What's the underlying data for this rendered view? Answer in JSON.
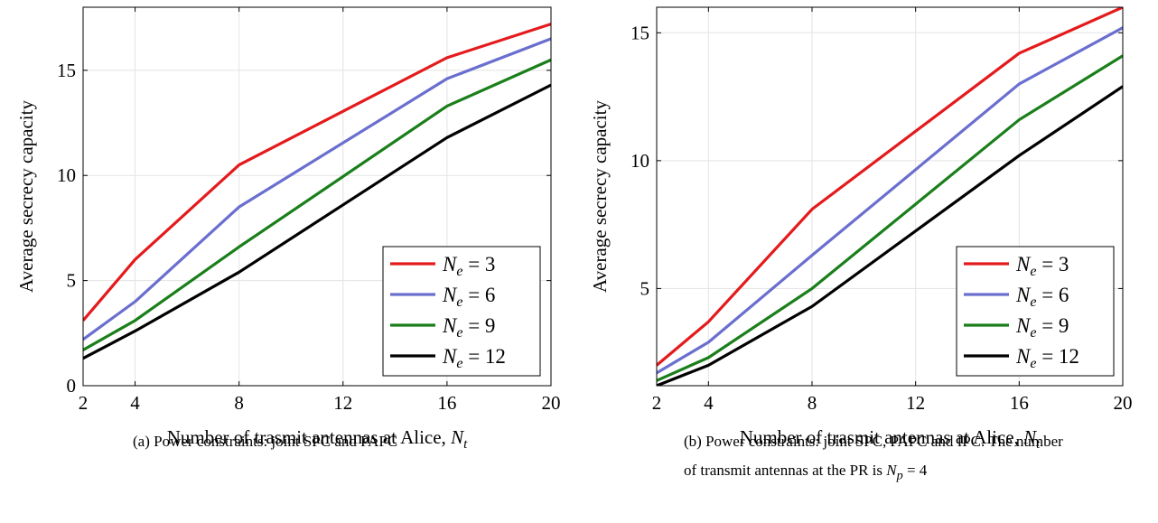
{
  "chart_data": [
    {
      "type": "line",
      "panel_id": "a",
      "xlabel": "Number of trasmit antennas at Alice, N_t",
      "xlabel_text": "Number of trasmit antennas at Alice, ",
      "xlabel_math": "N",
      "xlabel_sub": "t",
      "ylabel": "Average secrecy capacity",
      "xlim": [
        2,
        20
      ],
      "ylim": [
        0,
        18
      ],
      "xticks": [
        2,
        4,
        8,
        12,
        16,
        20
      ],
      "yticks": [
        0,
        5,
        10,
        15
      ],
      "grid": true,
      "legend_position": "bottom-right",
      "x": [
        2,
        4,
        8,
        16,
        20
      ],
      "series": [
        {
          "name": "N_e = 3",
          "label_value": "3",
          "color": "#e41a1c",
          "values": [
            3.1,
            6.0,
            10.5,
            15.6,
            17.2
          ]
        },
        {
          "name": "N_e = 6",
          "label_value": "6",
          "color": "#6a6fcf",
          "values": [
            2.2,
            4.0,
            8.5,
            14.6,
            16.5
          ]
        },
        {
          "name": "N_e = 9",
          "label_value": "9",
          "color": "#1a7f1a",
          "values": [
            1.7,
            3.1,
            6.6,
            13.3,
            15.5
          ]
        },
        {
          "name": "N_e = 12",
          "label_value": "12",
          "color": "#000000",
          "values": [
            1.3,
            2.6,
            5.4,
            11.8,
            14.3
          ]
        }
      ]
    },
    {
      "type": "line",
      "panel_id": "b",
      "xlabel": "Number of trasmit antennas at Alice, N_t",
      "xlabel_text": "Number of trasmit antennas at Alice, ",
      "xlabel_math": "N",
      "xlabel_sub": "t",
      "ylabel": "Average secrecy capacity",
      "xlim": [
        2,
        20
      ],
      "ylim": [
        1.2,
        16
      ],
      "xticks": [
        2,
        4,
        8,
        12,
        16,
        20
      ],
      "yticks": [
        5,
        10,
        15
      ],
      "grid": true,
      "legend_position": "bottom-right",
      "x": [
        2,
        4,
        8,
        16,
        20
      ],
      "series": [
        {
          "name": "N_e = 3",
          "label_value": "3",
          "color": "#e41a1c",
          "values": [
            2.0,
            3.7,
            8.1,
            14.2,
            16.0
          ]
        },
        {
          "name": "N_e = 6",
          "label_value": "6",
          "color": "#6a6fcf",
          "values": [
            1.7,
            2.9,
            6.3,
            13.0,
            15.2
          ]
        },
        {
          "name": "N_e = 9",
          "label_value": "9",
          "color": "#1a7f1a",
          "values": [
            1.4,
            2.3,
            5.0,
            11.6,
            14.1
          ]
        },
        {
          "name": "N_e = 12",
          "label_value": "12",
          "color": "#000000",
          "values": [
            1.2,
            2.0,
            4.3,
            10.2,
            12.9
          ]
        }
      ]
    }
  ],
  "captions": {
    "a": "(a) Power constraints: joint SPC and PAPC",
    "b_line1": "(b) Power constraints: joint SPC, PAPC and IPC. The number",
    "b_line2": "of transmit antennas at the PR is ",
    "b_math": "N",
    "b_sub": "p",
    "b_eq": " = 4"
  }
}
